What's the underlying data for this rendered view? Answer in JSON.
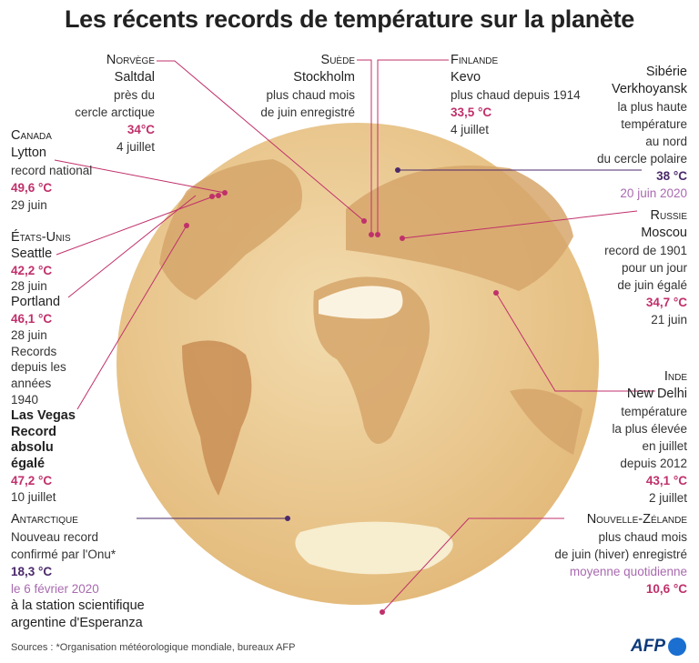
{
  "title": "Les récents records de température sur la planète",
  "records": {
    "norvege": {
      "country": "Norvège",
      "place": "Saltdal",
      "notes": [
        "près du",
        "cercle arctique"
      ],
      "temp": "34°C",
      "date": "4 juillet"
    },
    "suede": {
      "country": "Suède",
      "place": "Stockholm",
      "notes": [
        "plus chaud mois",
        "de juin enregistré"
      ]
    },
    "finlande": {
      "country": "Finlande",
      "place": "Kevo",
      "notes": [
        "plus chaud depuis 1914"
      ],
      "temp": "33,5 °C",
      "date": "4 juillet"
    },
    "siberie": {
      "region": "Sibérie",
      "place": "Verkhoyansk",
      "notes": [
        "la plus haute",
        "température",
        "au nord",
        "du cercle polaire"
      ],
      "temp": "38 °C",
      "date": "20 juin 2020"
    },
    "canada": {
      "country": "Canada",
      "place": "Lytton",
      "notes": [
        "record national"
      ],
      "temp": "49,6 °C",
      "date": "29 juin"
    },
    "etats_unis": {
      "country": "États-Unis",
      "cities": [
        {
          "place": "Seattle",
          "temp": "42,2 °C",
          "date": "28 juin"
        },
        {
          "place": "Portland",
          "temp": "46,1 °C",
          "date": "28 juin",
          "notes": [
            "Records",
            "depuis les",
            "années",
            "1940"
          ]
        },
        {
          "place": [
            "Las Vegas",
            "Record",
            "absolu",
            "égalé"
          ],
          "temp": "47,2 °C",
          "date": "10 juillet"
        }
      ]
    },
    "russie": {
      "country": "Russie",
      "place": "Moscou",
      "notes": [
        "record de 1901",
        "pour un jour",
        "de juin égalé"
      ],
      "temp": "34,7 °C",
      "date": "21 juin"
    },
    "inde": {
      "country": "Inde",
      "place": "New Delhi",
      "notes": [
        "température",
        "la plus élevée",
        "en juillet",
        "depuis 2012"
      ],
      "temp": "43,1 °C",
      "date": "2 juillet"
    },
    "antarctique": {
      "country": "Antarctique",
      "notes": [
        "Nouveau record",
        "confirmé par l'Onu*"
      ],
      "temp": "18,3 °C",
      "date": "le 6 février 2020",
      "station": [
        "à la station scientifique",
        "argentine d'Esperanza"
      ]
    },
    "nouvelle_zelande": {
      "country": "Nouvelle-Zélande",
      "notes": [
        "plus chaud mois",
        "de juin (hiver) enregistré"
      ],
      "measure": "moyenne quotidienne",
      "temp": "10,6 °C"
    }
  },
  "source": "Sources : *Organisation météorologique mondiale, bureaux AFP",
  "logo": "AFP"
}
